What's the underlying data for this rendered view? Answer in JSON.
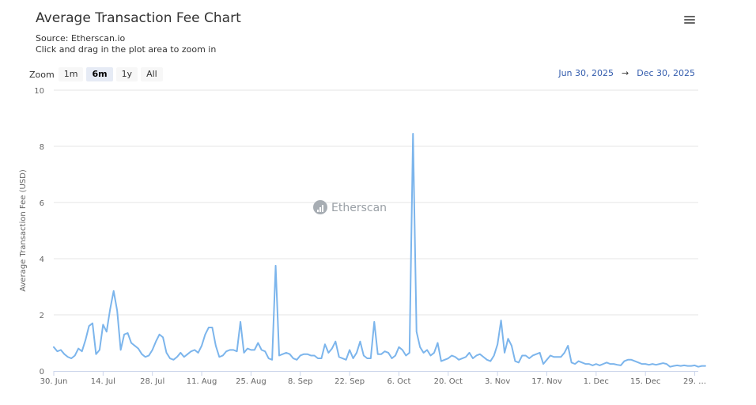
{
  "header": {
    "title": "Average Transaction Fee Chart",
    "source": "Source: Etherscan.io",
    "hint": "Click and drag in the plot area to zoom in",
    "menu_icon": "hamburger-menu-icon"
  },
  "zoom": {
    "label": "Zoom",
    "buttons": [
      {
        "label": "1m",
        "active": false
      },
      {
        "label": "6m",
        "active": true
      },
      {
        "label": "1y",
        "active": false
      },
      {
        "label": "All",
        "active": false
      }
    ]
  },
  "range": {
    "from": "Jun 30, 2025",
    "sep": "→",
    "to": "Dec 30, 2025"
  },
  "watermark": {
    "text": "Etherscan",
    "icon": "etherscan-logo-icon"
  },
  "chart_data": {
    "type": "line",
    "title": "Average Transaction Fee Chart",
    "xlabel": "",
    "ylabel": "Average Transaction Fee (USD)",
    "ylim": [
      0,
      10
    ],
    "yticks": [
      0,
      2,
      4,
      6,
      8,
      10
    ],
    "xlim": [
      "2025-06-30",
      "2025-12-30"
    ],
    "grid": true,
    "legend": "none",
    "line_color": "#7cb5ec",
    "xticks": [
      {
        "label": "30. Jun",
        "date": "2025-06-30"
      },
      {
        "label": "14. Jul",
        "date": "2025-07-14"
      },
      {
        "label": "28. Jul",
        "date": "2025-07-28"
      },
      {
        "label": "11. Aug",
        "date": "2025-08-11"
      },
      {
        "label": "25. Aug",
        "date": "2025-08-25"
      },
      {
        "label": "8. Sep",
        "date": "2025-09-08"
      },
      {
        "label": "22. Sep",
        "date": "2025-09-22"
      },
      {
        "label": "6. Oct",
        "date": "2025-10-06"
      },
      {
        "label": "20. Oct",
        "date": "2025-10-20"
      },
      {
        "label": "3. Nov",
        "date": "2025-11-03"
      },
      {
        "label": "17. Nov",
        "date": "2025-11-17"
      },
      {
        "label": "1. Dec",
        "date": "2025-12-01"
      },
      {
        "label": "15. Dec",
        "date": "2025-12-15"
      },
      {
        "label": "29. …",
        "date": "2025-12-29"
      }
    ],
    "series": [
      {
        "start_date": "2025-06-30",
        "values": [
          0.85,
          0.7,
          0.75,
          0.6,
          0.5,
          0.45,
          0.55,
          0.8,
          0.7,
          1.1,
          1.6,
          1.7,
          0.6,
          0.75,
          1.65,
          1.4,
          2.2,
          2.85,
          2.15,
          0.75,
          1.3,
          1.35,
          1.0,
          0.9,
          0.8,
          0.6,
          0.5,
          0.55,
          0.75,
          1.05,
          1.3,
          1.2,
          0.65,
          0.45,
          0.4,
          0.5,
          0.65,
          0.5,
          0.6,
          0.7,
          0.75,
          0.65,
          0.9,
          1.3,
          1.55,
          1.55,
          0.9,
          0.5,
          0.55,
          0.7,
          0.75,
          0.75,
          0.7,
          1.75,
          0.65,
          0.8,
          0.75,
          0.75,
          1.0,
          0.75,
          0.7,
          0.45,
          0.4,
          3.75,
          0.55,
          0.6,
          0.65,
          0.6,
          0.45,
          0.4,
          0.55,
          0.6,
          0.6,
          0.55,
          0.55,
          0.45,
          0.45,
          0.95,
          0.65,
          0.8,
          1.05,
          0.5,
          0.45,
          0.4,
          0.75,
          0.45,
          0.65,
          1.05,
          0.55,
          0.45,
          0.45,
          1.75,
          0.6,
          0.6,
          0.7,
          0.65,
          0.45,
          0.55,
          0.85,
          0.75,
          0.55,
          0.65,
          8.45,
          1.4,
          0.85,
          0.65,
          0.75,
          0.55,
          0.65,
          1.0,
          0.35,
          0.4,
          0.45,
          0.55,
          0.5,
          0.4,
          0.45,
          0.5,
          0.65,
          0.45,
          0.55,
          0.6,
          0.5,
          0.4,
          0.35,
          0.55,
          0.95,
          1.8,
          0.65,
          1.15,
          0.9,
          0.35,
          0.3,
          0.55,
          0.55,
          0.45,
          0.55,
          0.6,
          0.65,
          0.25,
          0.4,
          0.55,
          0.5,
          0.5,
          0.5,
          0.65,
          0.9,
          0.3,
          0.25,
          0.35,
          0.3,
          0.25,
          0.25,
          0.2,
          0.25,
          0.2,
          0.25,
          0.3,
          0.25,
          0.25,
          0.22,
          0.2,
          0.35,
          0.4,
          0.4,
          0.35,
          0.3,
          0.25,
          0.25,
          0.22,
          0.25,
          0.22,
          0.25,
          0.28,
          0.25,
          0.15,
          0.18,
          0.2,
          0.18,
          0.2,
          0.18,
          0.18,
          0.2,
          0.15,
          0.18,
          0.18
        ]
      }
    ]
  }
}
